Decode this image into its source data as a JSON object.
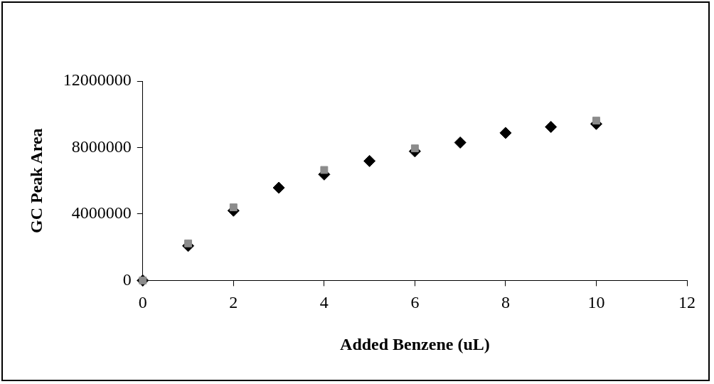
{
  "chart_data": {
    "type": "scatter",
    "xlabel": "Added Benzene (uL)",
    "ylabel": "GC Peak Area",
    "xlim": [
      0,
      12
    ],
    "xticks": [
      0,
      2,
      4,
      6,
      8,
      10,
      12
    ],
    "ylim": [
      0,
      12000000
    ],
    "yticks": [
      0,
      4000000,
      8000000,
      12000000
    ],
    "grid": false,
    "legend": false,
    "series": [
      {
        "color": "#000000",
        "marker": "diamond",
        "x": [
          0,
          1,
          2,
          3,
          4,
          5,
          6,
          7,
          8,
          9,
          10
        ],
        "values": [
          0,
          2080000,
          4200000,
          5580000,
          6380000,
          7190000,
          7770000,
          8300000,
          8880000,
          9240000,
          9420000
        ]
      },
      {
        "color": "#8c8c8c",
        "marker": "square",
        "x": [
          0,
          1,
          2,
          4,
          6,
          10
        ],
        "values": [
          0,
          2230000,
          4400000,
          6650000,
          7950000,
          9620000
        ]
      }
    ]
  }
}
